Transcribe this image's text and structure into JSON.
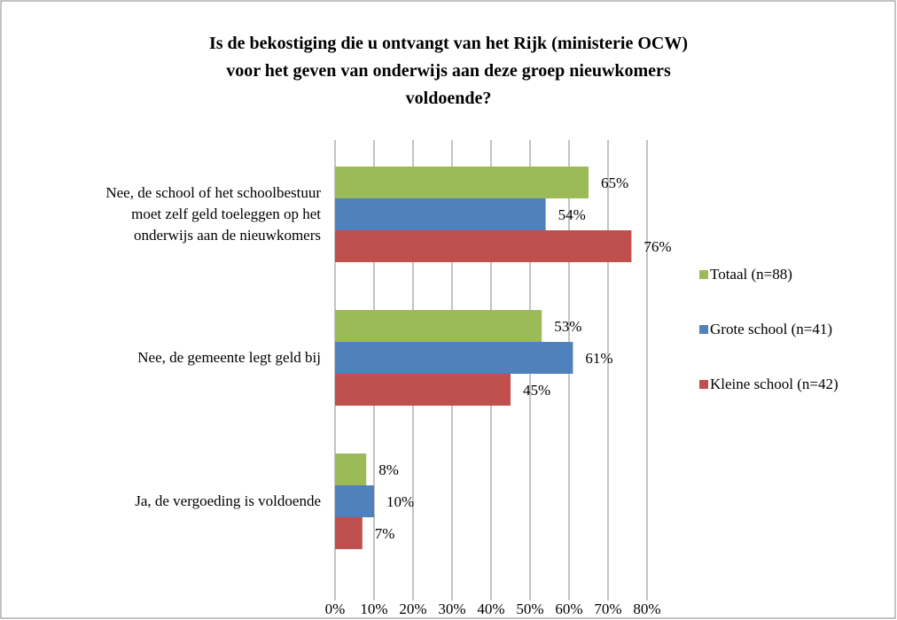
{
  "chart_data": {
    "type": "barh",
    "title": "Is de bekostiging  die u ontvangt van het Rijk (ministerie OCW)\nvoor het geven van onderwijs aan deze groep nieuwkomers\nvoldoende?",
    "categories": [
      "Nee, de school of het schoolbestuur\nmoet zelf geld toeleggen op het\nonderwijs aan de nieuwkomers",
      "Nee, de gemeente legt geld bij",
      "Ja, de vergoeding is voldoende"
    ],
    "series": [
      {
        "name": "Totaal (n=88)",
        "color": "#9bbb59",
        "values": [
          65,
          53,
          8
        ],
        "value_labels": [
          "65%",
          "53%",
          "8%"
        ]
      },
      {
        "name": "Grote school (n=41)",
        "color": "#4f81bd",
        "values": [
          54,
          61,
          10
        ],
        "value_labels": [
          "54%",
          "61%",
          "10%"
        ]
      },
      {
        "name": "Kleine school (n=42)",
        "color": "#c0504d",
        "values": [
          76,
          45,
          7
        ],
        "value_labels": [
          "76%",
          "45%",
          "7%"
        ]
      }
    ],
    "xlim": [
      0,
      80
    ],
    "xticks": [
      {
        "value": 0,
        "label": "0%"
      },
      {
        "value": 10,
        "label": "10%"
      },
      {
        "value": 20,
        "label": "20%"
      },
      {
        "value": 30,
        "label": "30%"
      },
      {
        "value": 40,
        "label": "40%"
      },
      {
        "value": 50,
        "label": "50%"
      },
      {
        "value": 60,
        "label": "60%"
      },
      {
        "value": 70,
        "label": "70%"
      },
      {
        "value": 80,
        "label": "80%"
      }
    ],
    "grid": true,
    "legend": "right"
  }
}
